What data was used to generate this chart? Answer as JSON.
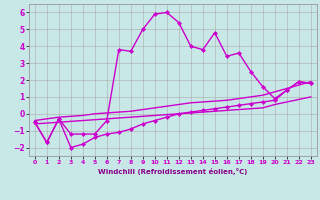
{
  "xlabel": "Windchill (Refroidissement éolien,°C)",
  "background_color": "#c8e8e8",
  "grid_color": "#aaaaaa",
  "line_color": "#cc00cc",
  "xlim": [
    -0.5,
    23.5
  ],
  "ylim": [
    -2.5,
    6.5
  ],
  "xticks": [
    0,
    1,
    2,
    3,
    4,
    5,
    6,
    7,
    8,
    9,
    10,
    11,
    12,
    13,
    14,
    15,
    16,
    17,
    18,
    19,
    20,
    21,
    22,
    23
  ],
  "yticks": [
    -2,
    -1,
    0,
    1,
    2,
    3,
    4,
    5,
    6
  ],
  "line1_x": [
    0,
    1,
    2,
    3,
    4,
    5,
    6,
    7,
    8,
    9,
    10,
    11,
    12,
    13,
    14,
    15,
    16,
    17,
    18,
    19,
    20,
    21,
    22,
    23
  ],
  "line1_y": [
    -0.5,
    -1.7,
    -0.3,
    -1.2,
    -1.2,
    -1.2,
    -0.4,
    3.8,
    3.7,
    5.0,
    5.9,
    6.0,
    5.4,
    4.0,
    3.8,
    4.8,
    3.4,
    3.6,
    2.5,
    1.6,
    0.9,
    1.4,
    1.9,
    1.8
  ],
  "line2_x": [
    0,
    1,
    2,
    3,
    4,
    5,
    6,
    7,
    8,
    9,
    10,
    11,
    12,
    13,
    14,
    15,
    16,
    17,
    18,
    19,
    20,
    21,
    22,
    23
  ],
  "line2_y": [
    -0.5,
    -1.7,
    -0.3,
    -2.0,
    -1.8,
    -1.4,
    -1.2,
    -1.1,
    -0.9,
    -0.6,
    -0.4,
    -0.2,
    0.0,
    0.1,
    0.2,
    0.3,
    0.4,
    0.5,
    0.6,
    0.7,
    0.8,
    1.4,
    1.9,
    1.8
  ],
  "line3_x": [
    0,
    1,
    2,
    3,
    4,
    5,
    6,
    7,
    8,
    9,
    10,
    11,
    12,
    13,
    14,
    15,
    16,
    17,
    18,
    19,
    20,
    21,
    22,
    23
  ],
  "line3_y": [
    -0.6,
    -0.55,
    -0.5,
    -0.45,
    -0.4,
    -0.35,
    -0.3,
    -0.25,
    -0.2,
    -0.15,
    -0.1,
    -0.05,
    0.0,
    0.05,
    0.1,
    0.15,
    0.2,
    0.25,
    0.3,
    0.35,
    0.55,
    0.7,
    0.85,
    1.0
  ],
  "line4_x": [
    0,
    1,
    2,
    3,
    4,
    5,
    6,
    7,
    8,
    9,
    10,
    11,
    12,
    13,
    14,
    15,
    16,
    17,
    18,
    19,
    20,
    21,
    22,
    23
  ],
  "line4_y": [
    -0.4,
    -0.3,
    -0.2,
    -0.15,
    -0.1,
    0.0,
    0.05,
    0.1,
    0.15,
    0.25,
    0.35,
    0.45,
    0.55,
    0.65,
    0.7,
    0.75,
    0.8,
    0.9,
    1.0,
    1.1,
    1.3,
    1.5,
    1.7,
    1.9
  ],
  "marker": "D",
  "marker_size": 2,
  "linewidth": 1.0
}
